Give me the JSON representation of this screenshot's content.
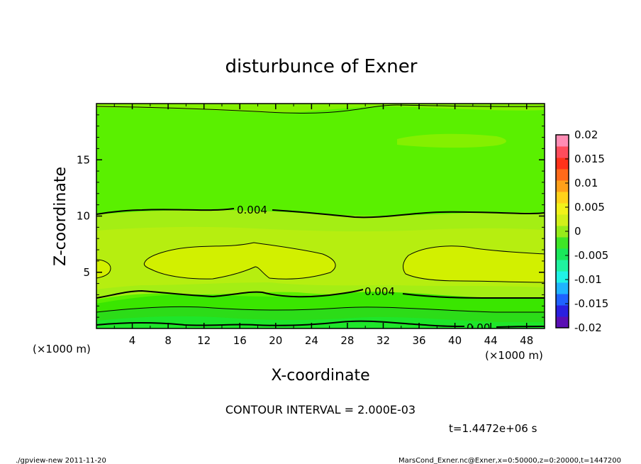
{
  "chart_data": {
    "type": "heatmap",
    "title": "disturbunce of Exner",
    "xlabel": "X-coordinate",
    "ylabel": "Z-coordinate",
    "x_unit_left": "(×1000 m)",
    "x_unit_right": "(×1000 m)",
    "xlim": [
      0,
      50
    ],
    "ylim": [
      0,
      20
    ],
    "x_ticks": [
      4,
      8,
      12,
      16,
      20,
      24,
      28,
      32,
      36,
      40,
      44,
      48
    ],
    "y_ticks": [
      5,
      10,
      15
    ],
    "contour_interval_text": "CONTOUR INTERVAL = 2.000E-03",
    "time_text": "t=1.4472e+06 s",
    "contour_labels": [
      {
        "text": "0.004",
        "x": 15.8,
        "z": 10.5
      },
      {
        "text": "0.004",
        "x": 31.8,
        "z": 3.2
      },
      {
        "text": "0.00",
        "x": 42.0,
        "z": 0.1
      }
    ],
    "colorbar": {
      "min": -0.02,
      "max": 0.02,
      "tick_labels": [
        "0.02",
        "0.015",
        "0.01",
        "0.005",
        "0",
        "-0.005",
        "-0.01",
        "-0.015",
        "-0.02"
      ],
      "colors": [
        "#5a0fb4",
        "#2a20e0",
        "#1f62ff",
        "#1fb4ff",
        "#1ff2e6",
        "#1ff2a0",
        "#19e85a",
        "#3fe626",
        "#96ec1a",
        "#d2f01a",
        "#f2f21a",
        "#ffd21a",
        "#ffa01a",
        "#ff6a1a",
        "#ff321a",
        "#ff4c5c",
        "#ff8cb4"
      ]
    },
    "fields": {
      "field_level_0.004": "#a4ee14",
      "field_level_0.002": "#5af000",
      "field_level_0.006": "#cef000"
    }
  },
  "footer": {
    "left": "./gpview-new  2011-11-20",
    "right": "MarsCond_Exner.nc@Exner,x=0:50000,z=0:20000,t=1447200"
  }
}
